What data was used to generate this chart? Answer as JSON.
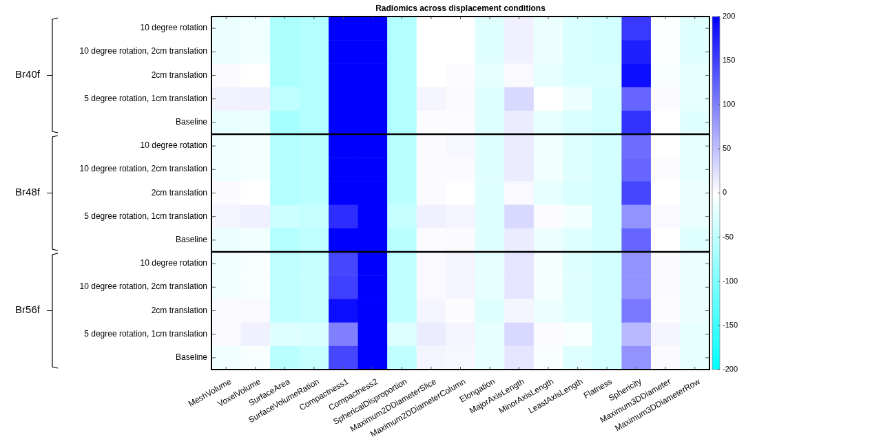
{
  "chart_data": {
    "type": "heatmap",
    "title": "Radiomics across displacement conditions",
    "categories": [
      "MeshVolume",
      "VoxelVolume",
      "SurfaceArea",
      "SurfaceVolumeRation",
      "Compactness1",
      "Compactness2",
      "SphericalDisproportion",
      "Maximum2DDiameterSlice",
      "Maximum2DDiameterColumn",
      "Elongation",
      "MajorAxisLength",
      "MinorAxisLength",
      "LeastAxisLength",
      "Flatness",
      "Sphericity",
      "Maximum3DDiameter",
      "Maximum3DDiameterRow"
    ],
    "y_categories": [
      "10 degree rotation",
      "10 degree rotation, 2cm translation",
      "2cm translation",
      "5 degree rotation, 1cm translation",
      "Baseline",
      "10 degree rotation",
      "10 degree rotation, 2cm translation",
      "2cm translation",
      "5 degree rotation, 1cm translation",
      "Baseline",
      "10 degree rotation",
      "10 degree rotation, 2cm translation",
      "2cm translation",
      "5 degree rotation, 1cm translation",
      "Baseline"
    ],
    "cells": [
      [
        -15,
        -12,
        -65,
        -60,
        200,
        200,
        -60,
        0,
        0,
        -25,
        12,
        -15,
        -30,
        -35,
        155,
        -3,
        -25
      ],
      [
        -15,
        -12,
        -65,
        -60,
        200,
        200,
        -60,
        0,
        0,
        -25,
        12,
        -15,
        -30,
        -35,
        175,
        -3,
        -25
      ],
      [
        3,
        0,
        -65,
        -60,
        200,
        200,
        -60,
        0,
        2,
        -20,
        5,
        -20,
        -30,
        -30,
        190,
        -5,
        -20
      ],
      [
        10,
        12,
        -50,
        -60,
        200,
        200,
        -60,
        8,
        4,
        -25,
        30,
        0,
        -15,
        -35,
        120,
        3,
        -20
      ],
      [
        -18,
        -15,
        -70,
        -60,
        200,
        200,
        -60,
        2,
        2,
        -25,
        15,
        -20,
        -30,
        -35,
        160,
        0,
        -25
      ],
      [
        -12,
        -8,
        -60,
        -55,
        200,
        200,
        -55,
        3,
        6,
        -25,
        15,
        -12,
        -25,
        -35,
        115,
        0,
        -20
      ],
      [
        -12,
        -8,
        -60,
        -55,
        200,
        200,
        -55,
        3,
        3,
        -25,
        15,
        -10,
        -25,
        -35,
        120,
        2,
        -20
      ],
      [
        3,
        0,
        -60,
        -55,
        200,
        200,
        -55,
        3,
        0,
        -25,
        5,
        -20,
        -30,
        -35,
        145,
        0,
        -15
      ],
      [
        8,
        12,
        -40,
        -45,
        165,
        200,
        -45,
        12,
        8,
        -25,
        30,
        2,
        -10,
        -35,
        85,
        5,
        -15
      ],
      [
        -15,
        -10,
        -60,
        -50,
        200,
        200,
        -55,
        2,
        4,
        -25,
        15,
        -15,
        -25,
        -35,
        120,
        0,
        -25
      ],
      [
        -10,
        -5,
        -50,
        -45,
        145,
        200,
        -50,
        5,
        8,
        -20,
        20,
        -8,
        -25,
        -35,
        85,
        3,
        -15
      ],
      [
        -10,
        -5,
        -50,
        -45,
        150,
        200,
        -50,
        5,
        8,
        -20,
        20,
        -8,
        -25,
        -35,
        85,
        3,
        -15
      ],
      [
        5,
        5,
        -50,
        -45,
        190,
        200,
        -50,
        8,
        2,
        -25,
        8,
        -15,
        -25,
        -35,
        105,
        2,
        -15
      ],
      [
        5,
        12,
        -25,
        -30,
        100,
        200,
        -25,
        15,
        8,
        -20,
        30,
        2,
        -5,
        -35,
        55,
        8,
        -20
      ],
      [
        -12,
        -5,
        -55,
        -45,
        145,
        200,
        -50,
        8,
        6,
        -20,
        20,
        -5,
        -25,
        -35,
        85,
        3,
        -20
      ]
    ],
    "clim": [
      -200,
      200
    ],
    "cticks": [
      -200,
      -150,
      -100,
      -50,
      0,
      50,
      100,
      150,
      200
    ],
    "annotations": [
      "Br40f",
      "Br48f",
      "Br56f"
    ]
  }
}
